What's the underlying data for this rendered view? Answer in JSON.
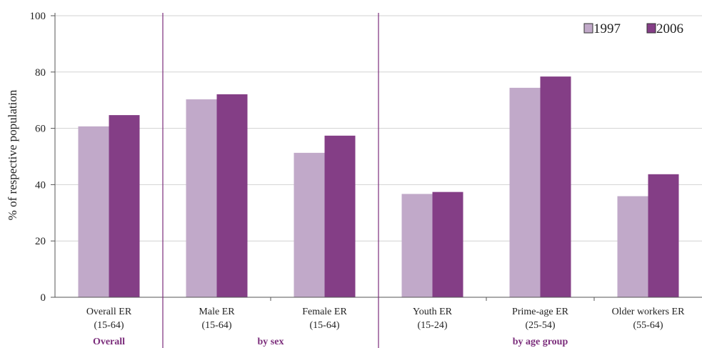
{
  "chart_data": {
    "type": "bar",
    "ylabel": "% of respective population",
    "ylim": [
      0,
      100
    ],
    "yticks": [
      0,
      20,
      40,
      60,
      80,
      100
    ],
    "grid": true,
    "legend_position": "top-right",
    "categories": [
      {
        "line1": "Overall ER",
        "line2": "(15-64)"
      },
      {
        "line1": "Male ER",
        "line2": "(15-64)"
      },
      {
        "line1": "Female ER",
        "line2": "(15-64)"
      },
      {
        "line1": "Youth ER",
        "line2": "(15-24)"
      },
      {
        "line1": "Prime-age ER",
        "line2": "(25-54)"
      },
      {
        "line1": "Older workers ER",
        "line2": "(55-64)"
      }
    ],
    "groups": [
      {
        "label": "Overall",
        "span": [
          0,
          0
        ]
      },
      {
        "label": "by sex",
        "span": [
          1,
          2
        ]
      },
      {
        "label": "by age group",
        "span": [
          3,
          5
        ]
      }
    ],
    "series": [
      {
        "name": "1997",
        "color": "#c1a9c9",
        "values": [
          60.7,
          70.3,
          51.3,
          36.7,
          74.4,
          35.9
        ]
      },
      {
        "name": "2006",
        "color": "#843e86",
        "values": [
          64.7,
          72.1,
          57.4,
          37.4,
          78.4,
          43.7
        ]
      }
    ],
    "axis_color": "#7b2d7b",
    "group_label_color": "#7b2d7b"
  }
}
